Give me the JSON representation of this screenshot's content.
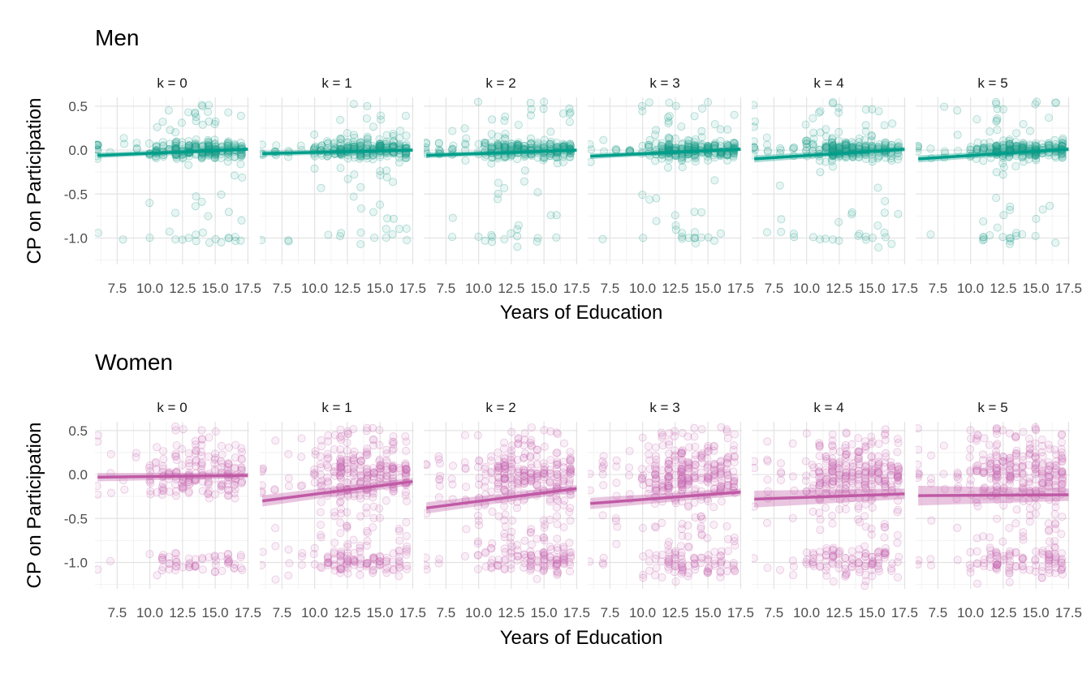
{
  "chart_data": [
    {
      "type": "scatter",
      "title": "Men",
      "xlabel": "Years of Education",
      "ylabel": "CP on Participation",
      "xlim": [
        5.8,
        17.6
      ],
      "ylim": [
        -1.3,
        0.6
      ],
      "x_ticks": [
        "7.5",
        "10.0",
        "12.5",
        "15.0",
        "17.5"
      ],
      "y_ticks": [
        "0.5",
        "0.0",
        "-0.5",
        "-1.0"
      ],
      "grid": true,
      "point_color": "#1b9e8a",
      "line_color": "#009e8a",
      "facets": [
        {
          "label": "k = 0",
          "fit": {
            "x0": 6,
            "y0": -0.06,
            "x1": 17.5,
            "y1": 0.01
          },
          "band": 0.02
        },
        {
          "label": "k = 1",
          "fit": {
            "x0": 6,
            "y0": -0.04,
            "x1": 17.5,
            "y1": 0.0
          },
          "band": 0.02
        },
        {
          "label": "k = 2",
          "fit": {
            "x0": 6,
            "y0": -0.06,
            "x1": 17.5,
            "y1": 0.0
          },
          "band": 0.02
        },
        {
          "label": "k = 3",
          "fit": {
            "x0": 6,
            "y0": -0.07,
            "x1": 17.5,
            "y1": 0.01
          },
          "band": 0.02
        },
        {
          "label": "k = 4",
          "fit": {
            "x0": 6,
            "y0": -0.1,
            "x1": 17.5,
            "y1": 0.01
          },
          "band": 0.025
        },
        {
          "label": "k = 5",
          "fit": {
            "x0": 6,
            "y0": -0.1,
            "x1": 17.5,
            "y1": 0.01
          },
          "band": 0.025
        }
      ]
    },
    {
      "type": "scatter",
      "title": "Women",
      "xlabel": "Years of Education",
      "ylabel": "CP on Participation",
      "xlim": [
        5.8,
        17.6
      ],
      "ylim": [
        -1.3,
        0.6
      ],
      "x_ticks": [
        "7.5",
        "10.0",
        "12.5",
        "15.0",
        "17.5"
      ],
      "y_ticks": [
        "0.5",
        "0.0",
        "-0.5",
        "-1.0"
      ],
      "grid": true,
      "point_color": "#c966b0",
      "line_color": "#c05aa5",
      "facets": [
        {
          "label": "k = 0",
          "fit": {
            "x0": 6,
            "y0": -0.03,
            "x1": 17.5,
            "y1": -0.01
          },
          "band": 0.03
        },
        {
          "label": "k = 1",
          "fit": {
            "x0": 6,
            "y0": -0.3,
            "x1": 17.5,
            "y1": -0.08
          },
          "band": 0.04
        },
        {
          "label": "k = 2",
          "fit": {
            "x0": 6,
            "y0": -0.38,
            "x1": 17.5,
            "y1": -0.16
          },
          "band": 0.04
        },
        {
          "label": "k = 3",
          "fit": {
            "x0": 6,
            "y0": -0.33,
            "x1": 17.5,
            "y1": -0.2
          },
          "band": 0.04
        },
        {
          "label": "k = 4",
          "fit": {
            "x0": 6,
            "y0": -0.28,
            "x1": 17.5,
            "y1": -0.22
          },
          "band": 0.06
        },
        {
          "label": "k = 5",
          "fit": {
            "x0": 6,
            "y0": -0.24,
            "x1": 17.5,
            "y1": -0.23
          },
          "band": 0.07
        }
      ]
    }
  ]
}
